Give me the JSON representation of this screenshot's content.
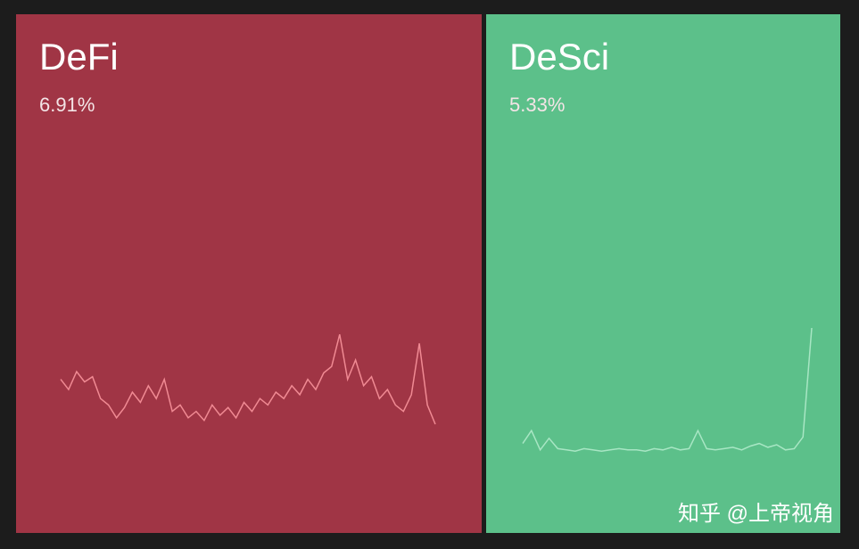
{
  "tiles": [
    {
      "title": "DeFi",
      "change": "6.91%",
      "bg": "#a03545",
      "line": "#f08a93",
      "spark": [
        60,
        52,
        66,
        58,
        62,
        45,
        40,
        30,
        38,
        50,
        42,
        55,
        45,
        60,
        35,
        40,
        30,
        35,
        28,
        40,
        32,
        38,
        30,
        42,
        35,
        45,
        40,
        50,
        45,
        55,
        48,
        60,
        52,
        65,
        70,
        95,
        60,
        75,
        55,
        62,
        45,
        52,
        40,
        35,
        48,
        88,
        40,
        25
      ]
    },
    {
      "title": "DeSci",
      "change": "5.33%",
      "bg": "#5cc08a",
      "line": "#a8e6c4",
      "spark": [
        10,
        20,
        5,
        14,
        6,
        5,
        4,
        6,
        5,
        4,
        5,
        6,
        5,
        5,
        4,
        6,
        5,
        7,
        5,
        6,
        20,
        6,
        5,
        6,
        7,
        5,
        8,
        10,
        7,
        9,
        5,
        6,
        15,
        100
      ]
    }
  ],
  "watermark": "知乎 @上帝视角"
}
